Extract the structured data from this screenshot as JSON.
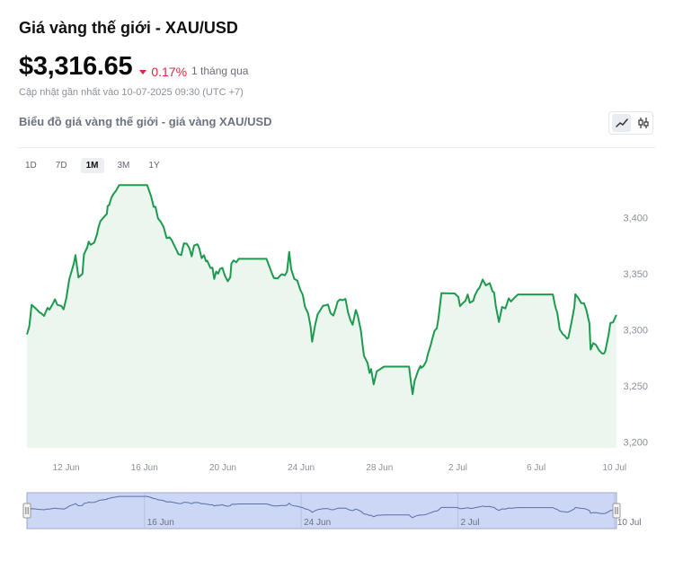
{
  "header": {
    "title": "Giá vàng thế giới - XAU/USD",
    "price": "$3,316.65",
    "change": "0.17%",
    "period": "1 tháng qua",
    "updated": "Cập nhật gần nhất vào 10-07-2025 09:30 (UTC +7)"
  },
  "chart_header": {
    "title": "Biểu đồ giá vàng thế giới - giá vàng XAU/USD",
    "toggle": [
      "line-chart-icon",
      "candlestick-icon"
    ]
  },
  "ranges": {
    "items": [
      "1D",
      "7D",
      "1M",
      "3M",
      "1Y"
    ],
    "active": "1M"
  },
  "colors": {
    "line": "#1d9a4e",
    "fill": "#eaf6ee",
    "down": "#e0243a",
    "navigator": "#ccd6f5"
  },
  "chart_data": {
    "type": "area",
    "title": "",
    "xlabel": "",
    "ylabel": "",
    "ylim": [
      3195,
      3430
    ],
    "xlim": [
      10.0,
      40.1
    ],
    "x_ticks": [
      {
        "x": 12,
        "label": "12 Jun"
      },
      {
        "x": 16,
        "label": "16 Jun"
      },
      {
        "x": 20,
        "label": "20 Jun"
      },
      {
        "x": 24,
        "label": "24 Jun"
      },
      {
        "x": 28,
        "label": "28 Jun"
      },
      {
        "x": 32,
        "label": "2 Jul"
      },
      {
        "x": 36,
        "label": "6 Jul"
      },
      {
        "x": 40,
        "label": "10 Jul"
      }
    ],
    "y_ticks": [
      {
        "y": 3400,
        "label": "3,400"
      },
      {
        "y": 3350,
        "label": "3,350"
      },
      {
        "y": 3300,
        "label": "3,300"
      },
      {
        "y": 3250,
        "label": "3,250"
      },
      {
        "y": 3200,
        "label": "3,200"
      }
    ],
    "navigator_labels": [
      {
        "x": 16,
        "label": "16 Jun"
      },
      {
        "x": 24,
        "label": "24 Jun"
      },
      {
        "x": 32,
        "label": "2 Jul"
      },
      {
        "x": 40,
        "label": "10 Jul"
      }
    ],
    "series": [
      {
        "x": [
          10.0,
          10.12,
          10.24,
          10.44,
          10.64,
          10.75,
          10.87,
          11.05,
          11.15,
          11.34,
          11.43,
          11.55,
          11.67,
          11.76,
          11.87,
          12.02,
          12.12,
          12.16,
          12.39,
          12.48,
          12.63,
          12.83,
          12.91,
          13.08,
          13.15,
          13.25,
          13.43,
          13.58,
          13.64,
          13.75,
          13.95,
          14.08,
          14.12,
          14.2,
          14.31,
          14.41,
          14.55,
          14.71,
          16.14,
          16.34,
          16.47,
          16.56,
          16.69,
          16.83,
          16.98,
          17.13,
          17.28,
          17.39,
          17.52,
          17.64,
          17.73,
          17.88,
          18.01,
          18.16,
          18.29,
          18.41,
          18.53,
          18.7,
          18.78,
          18.92,
          19.04,
          19.14,
          19.2,
          19.37,
          19.47,
          19.56,
          19.66,
          19.76,
          19.86,
          19.98,
          20.1,
          20.25,
          20.38,
          20.44,
          20.55,
          20.69,
          20.81,
          20.89,
          22.23,
          22.38,
          22.49,
          22.61,
          22.8,
          22.96,
          23.03,
          23.17,
          23.28,
          23.39,
          23.49,
          23.65,
          23.8,
          23.95,
          24.08,
          24.19,
          24.36,
          24.48,
          24.56,
          24.71,
          24.84,
          25.01,
          25.12,
          25.24,
          25.37,
          25.5,
          25.64,
          25.75,
          25.86,
          25.98,
          26.11,
          26.26,
          26.4,
          26.52,
          26.63,
          26.79,
          26.89,
          27.05,
          27.16,
          27.21,
          27.39,
          27.49,
          27.57,
          27.7,
          27.86,
          28.23,
          29.51,
          29.6,
          29.69,
          29.79,
          29.98,
          30.09,
          30.13,
          30.25,
          30.38,
          30.48,
          30.61,
          30.7,
          30.81,
          30.93,
          31.01,
          31.16,
          31.84,
          32.03,
          32.11,
          32.26,
          32.38,
          32.5,
          32.61,
          32.79,
          32.86,
          33.01,
          33.11,
          33.27,
          33.43,
          33.63,
          33.77,
          33.85,
          33.94,
          34.1,
          34.26,
          34.43,
          34.6,
          34.71,
          34.89,
          35.07,
          36.85,
          36.97,
          37.08,
          37.2,
          37.36,
          37.47,
          37.57,
          37.64,
          37.8,
          37.95,
          38.0,
          38.14,
          38.3,
          38.44,
          38.56,
          38.72,
          38.78,
          38.91,
          39.05,
          39.21,
          39.37,
          39.47,
          39.53,
          39.69,
          39.79,
          39.93,
          40.09
        ],
        "y": [
          3296.0,
          3303.2,
          3322.4,
          3319.2,
          3315.7,
          3314.6,
          3312.4,
          3319.7,
          3318.1,
          3324.0,
          3327.3,
          3322.4,
          3321.8,
          3321.2,
          3318.3,
          3329.2,
          3340.7,
          3345.3,
          3359.0,
          3366.7,
          3346.8,
          3349.9,
          3367.2,
          3373.6,
          3378.7,
          3375.8,
          3377.7,
          3385.2,
          3390.6,
          3396.8,
          3401.0,
          3403.4,
          3410.3,
          3411.2,
          3417.7,
          3420.9,
          3424.1,
          3429.0,
          3429.0,
          3418.9,
          3409.6,
          3409.7,
          3399.5,
          3396.3,
          3391.6,
          3381.8,
          3382.5,
          3379.9,
          3375.2,
          3371.1,
          3367.5,
          3366.7,
          3377.2,
          3376.8,
          3372.9,
          3365.6,
          3375.2,
          3376.3,
          3373.6,
          3364.0,
          3366.5,
          3361.2,
          3361.7,
          3355.2,
          3355.4,
          3345.4,
          3352.0,
          3350.1,
          3354.4,
          3355.3,
          3348.7,
          3343.4,
          3346.7,
          3359.1,
          3361.9,
          3360.3,
          3363.3,
          3363.3,
          3363.3,
          3356.4,
          3351.1,
          3346.2,
          3345.8,
          3349.0,
          3349.7,
          3348.6,
          3352.1,
          3369.6,
          3354.2,
          3345.4,
          3344.0,
          3336.1,
          3331.3,
          3320.8,
          3314.3,
          3303.1,
          3289.5,
          3304.1,
          3313.8,
          3318.5,
          3321.6,
          3321.9,
          3322.6,
          3315.0,
          3312.8,
          3318.4,
          3325.3,
          3327.1,
          3326.5,
          3327.6,
          3315.3,
          3308.6,
          3304.7,
          3317.8,
          3312.8,
          3299.2,
          3283.1,
          3276.8,
          3270.6,
          3261.7,
          3265.2,
          3251.5,
          3263.1,
          3267.3,
          3267.3,
          3254.1,
          3242.7,
          3254.5,
          3264.0,
          3267.9,
          3266.3,
          3267.8,
          3272.0,
          3279.0,
          3286.3,
          3292.2,
          3299.1,
          3301.6,
          3310.4,
          3332.8,
          3332.5,
          3329.2,
          3321.2,
          3324.1,
          3325.8,
          3331.6,
          3324.2,
          3326.0,
          3330.4,
          3335.6,
          3337.8,
          3344.9,
          3339.7,
          3341.7,
          3334.4,
          3333.4,
          3321.4,
          3307.1,
          3320.5,
          3319.1,
          3328.2,
          3325.3,
          3328.7,
          3331.6,
          3331.6,
          3321.1,
          3314.9,
          3300.6,
          3296.2,
          3294.7,
          3292.3,
          3293.0,
          3306.6,
          3320.3,
          3331.8,
          3328.7,
          3323.9,
          3323.8,
          3318.1,
          3305.8,
          3282.5,
          3288.3,
          3286.8,
          3281.9,
          3278.9,
          3279.2,
          3281.3,
          3295.2,
          3306.2,
          3306.9,
          3313.4
        ]
      }
    ]
  }
}
